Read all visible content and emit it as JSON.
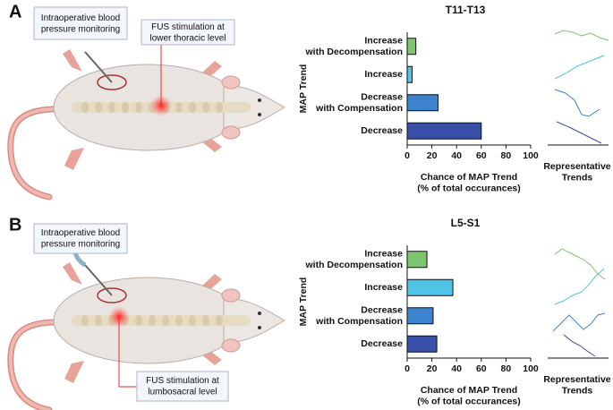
{
  "chart_data": [
    {
      "type": "bar",
      "orientation": "horizontal",
      "panel": "A",
      "title": "T11-T13",
      "annotations": [
        "Intraoperative blood\npressure monitoring",
        "FUS stimulation at\nlower thoracic level"
      ],
      "categories": [
        "Increase\nwith Decompensation",
        "Increase",
        "Decrease\nwith Compensation",
        "Decrease"
      ],
      "values": [
        7,
        4,
        25,
        60
      ],
      "colors": [
        "#7dc56f",
        "#4fc3e8",
        "#3c82cc",
        "#3a4fa8"
      ],
      "xlim": [
        0,
        100
      ],
      "xticks": [
        0,
        20,
        40,
        60,
        80,
        100
      ],
      "xlabel": "Chance of MAP Trend\n(% of total occurances)",
      "ylabel": "MAP Trend",
      "side_label": "Representative\nTrends"
    },
    {
      "type": "bar",
      "orientation": "horizontal",
      "panel": "B",
      "title": "L5-S1",
      "annotations": [
        "Intraoperative blood\npressure monitoring",
        "FUS stimulation at\nlumbosacral level"
      ],
      "categories": [
        "Increase\nwith Decompensation",
        "Increase",
        "Decrease\nwith Compensation",
        "Decrease"
      ],
      "values": [
        16,
        37,
        21,
        24
      ],
      "colors": [
        "#7dc56f",
        "#4fc3e8",
        "#3c82cc",
        "#3a4fa8"
      ],
      "xlim": [
        0,
        100
      ],
      "xticks": [
        0,
        20,
        40,
        60,
        80,
        100
      ],
      "xlabel": "Chance of MAP Trend\n(% of total occurances)",
      "ylabel": "MAP Trend",
      "side_label": "Representative\nTrends"
    }
  ]
}
